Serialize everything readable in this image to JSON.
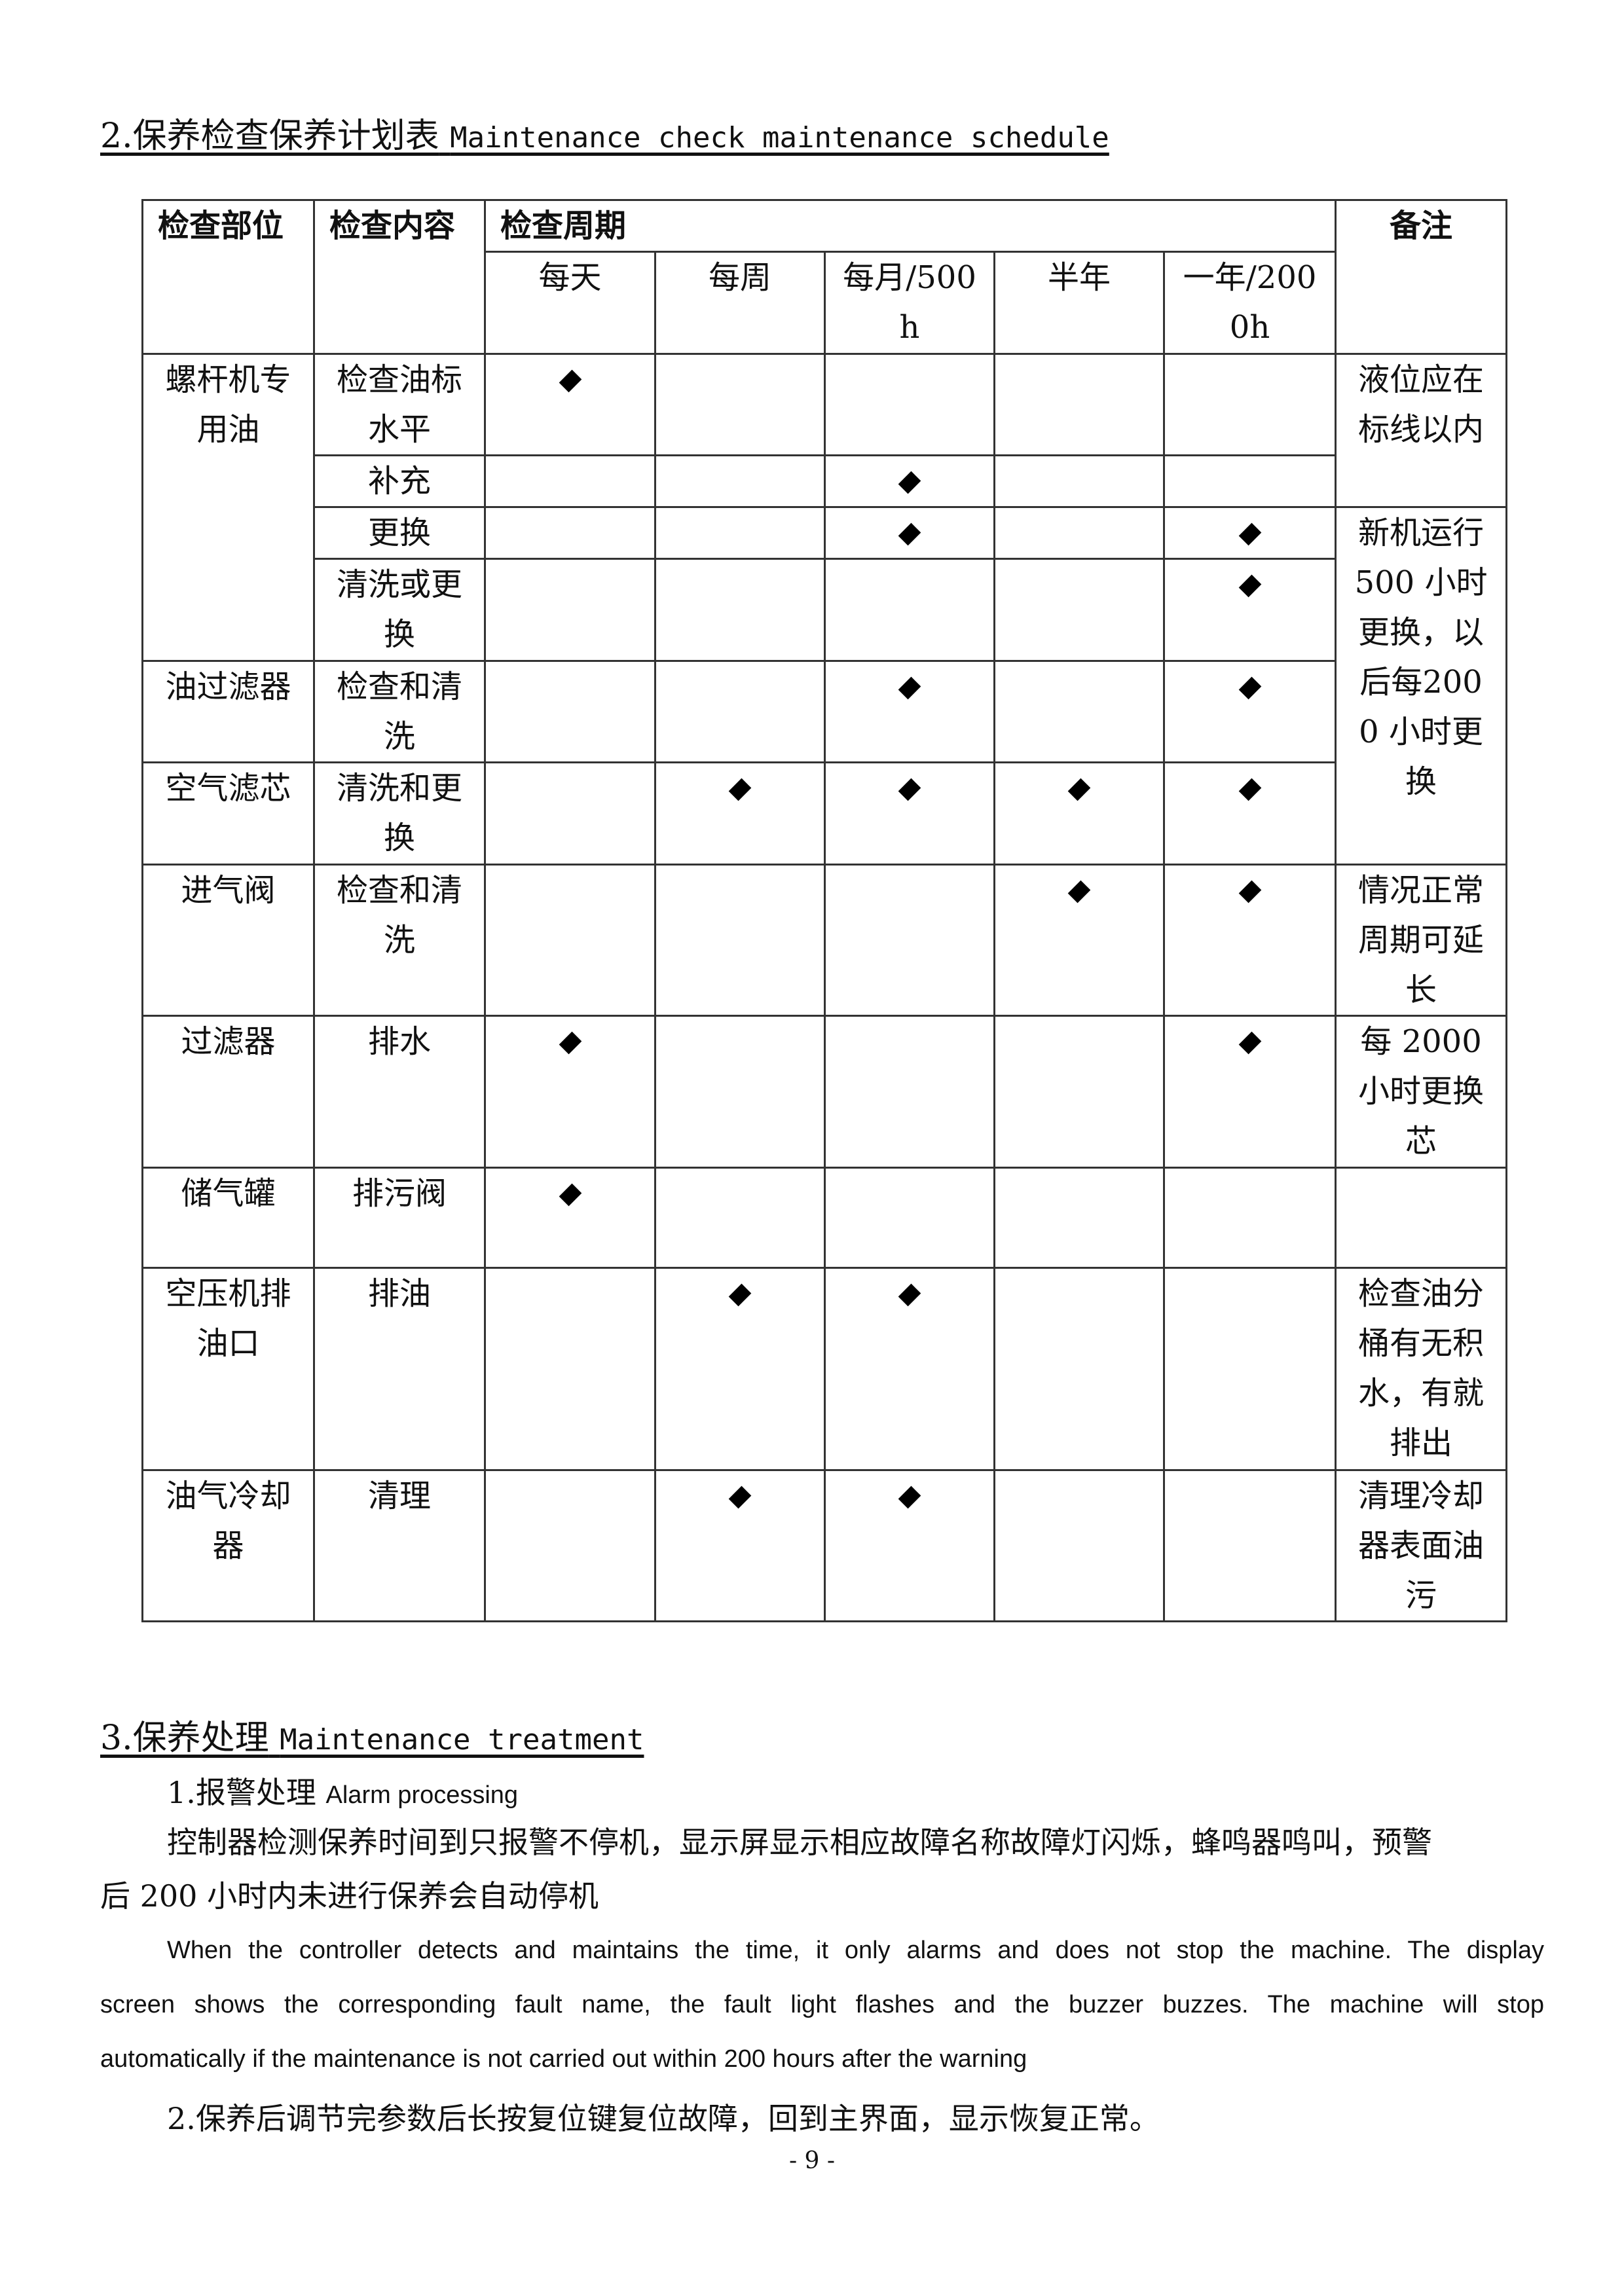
{
  "section2": {
    "title_cn": "2.保养检查保养计划表",
    "title_en": "Maintenance check maintenance schedule"
  },
  "table": {
    "headers": {
      "part": "检查部位",
      "content": "检查内容",
      "period": "检查周期",
      "remark": "备注"
    },
    "periods": [
      "每天",
      "每周",
      "每月/500h",
      "半年",
      "一年/2000h"
    ],
    "rows": [
      {
        "part": "螺杆机专用油",
        "part_span": 4,
        "content": "检查油标水平",
        "marks": [
          1,
          0,
          0,
          0,
          0
        ],
        "remark": "液位应在标线以内",
        "remark_span": 2
      },
      {
        "content": "补充",
        "marks": [
          0,
          0,
          1,
          0,
          0
        ]
      },
      {
        "content": "更换",
        "marks": [
          0,
          0,
          1,
          0,
          1
        ],
        "remark": "新机运行500 小时更换，以后每2000 小时更换",
        "remark_span": 4
      },
      {
        "content": "清洗或更换",
        "marks": [
          0,
          0,
          0,
          0,
          1
        ]
      },
      {
        "part": "油过滤器",
        "part_span": 1,
        "content": "检查和清洗",
        "marks": [
          0,
          0,
          1,
          0,
          1
        ]
      },
      {
        "part": "空气滤芯",
        "part_span": 1,
        "content": "清洗和更换",
        "marks": [
          0,
          1,
          1,
          1,
          1
        ]
      },
      {
        "part": "进气阀",
        "part_span": 1,
        "content": "检查和清洗",
        "marks": [
          0,
          0,
          0,
          1,
          1
        ],
        "remark": "情况正常周期可延长",
        "remark_span": 1
      },
      {
        "part": "过滤器",
        "part_span": 1,
        "content": "排水",
        "marks": [
          1,
          0,
          0,
          0,
          1
        ],
        "remark": "每 2000 小时更换芯",
        "remark_span": 1
      },
      {
        "part": "储气罐",
        "part_span": 1,
        "content": "排污阀",
        "marks": [
          1,
          0,
          0,
          0,
          0
        ],
        "remark": "",
        "remark_span": 1
      },
      {
        "part": "空压机排油口",
        "part_span": 1,
        "content": "排油",
        "marks": [
          0,
          1,
          1,
          0,
          0
        ],
        "remark": "检查油分桶有无积水，有就排出",
        "remark_span": 1
      },
      {
        "part": "油气冷却器",
        "part_span": 1,
        "content": "清理",
        "marks": [
          0,
          1,
          1,
          0,
          0
        ],
        "remark": "清理冷却器表面油污",
        "remark_span": 1
      }
    ]
  },
  "section3": {
    "title_cn": "3.保养处理",
    "title_en": "Maintenance treatment",
    "item1_cn": "1.报警处理",
    "item1_en": "Alarm processing",
    "para_cn_1": "控制器检测保养时间到只报警不停机，显示屏显示相应故障名称故障灯闪烁，蜂鸣器鸣叫，预警",
    "para_cn_2": "后 200 小时内未进行保养会自动停机",
    "para_en_1": "When the controller detects and maintains the time, it only alarms and does not stop the machine. The display",
    "para_en_2": "screen shows the corresponding fault name, the fault light flashes and the buzzer buzzes. The machine will stop",
    "para_en_3": "automatically if the maintenance is not carried out within 200 hours after the warning",
    "item2": "2.保养后调节完参数后长按复位键复位故障，回到主界面，显示恢复正常。"
  },
  "page_number": "- 9 -"
}
